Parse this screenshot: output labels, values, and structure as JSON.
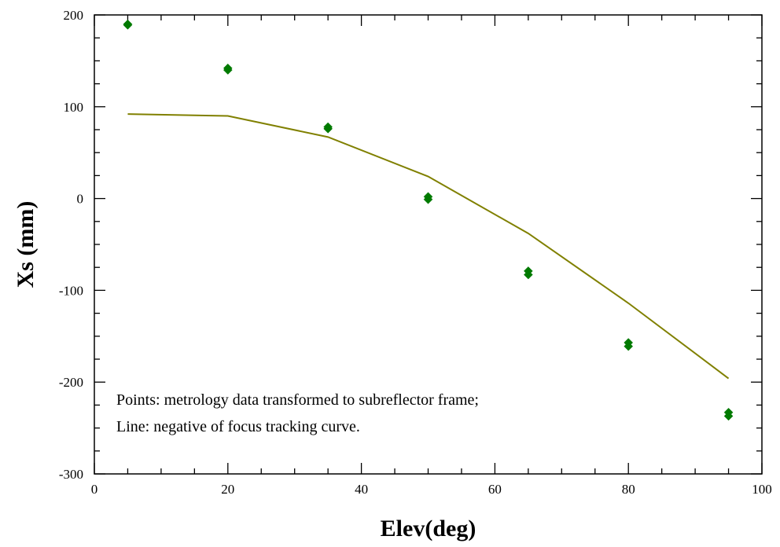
{
  "chart_data": {
    "type": "scatter",
    "xlabel": "Elev(deg)",
    "ylabel": "Xs (mm)",
    "xlim": [
      0,
      100
    ],
    "ylim": [
      -300,
      200
    ],
    "x_ticks": [
      0,
      20,
      40,
      60,
      80,
      100
    ],
    "y_ticks": [
      -300,
      -200,
      -100,
      0,
      100,
      200
    ],
    "x_minor_step": 5,
    "y_minor_step": 25,
    "grid": false,
    "annotations": [
      "Points: metrology data transformed to subreflector frame;",
      "Line: negative of focus tracking curve."
    ],
    "series": [
      {
        "kind": "points",
        "marker": "diamond",
        "color": "#007a00",
        "x": [
          5,
          5,
          20,
          20,
          35,
          35,
          50,
          50,
          65,
          65,
          80,
          80,
          95,
          95
        ],
        "y": [
          190,
          189,
          142,
          140,
          78,
          76,
          2,
          -1,
          -79,
          -83,
          -157,
          -161,
          -233,
          -237
        ]
      },
      {
        "kind": "line",
        "color": "#808000",
        "x": [
          5,
          20,
          35,
          50,
          65,
          80,
          95
        ],
        "y": [
          92,
          90,
          67,
          24,
          -38,
          -114,
          -196
        ]
      }
    ]
  }
}
